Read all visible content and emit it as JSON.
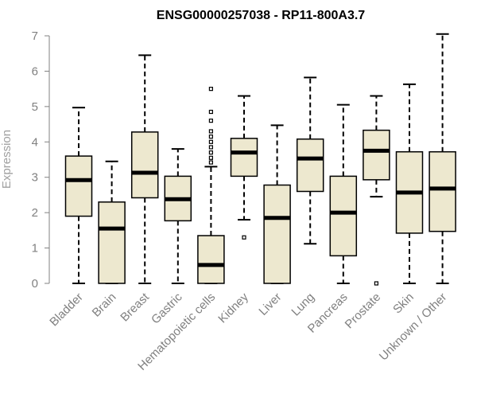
{
  "chart_data": {
    "type": "boxplot",
    "title": "ENSG00000257038 - RP11-800A3.7",
    "ylabel": "Expression",
    "xlabel": "",
    "ylim": [
      0,
      7
    ],
    "yticks": [
      0,
      1,
      2,
      3,
      4,
      5,
      6,
      7
    ],
    "grid": false,
    "colors": {
      "box_fill": "#ede8cf",
      "box_stroke": "#000000",
      "median": "#000000",
      "axis": "#808080",
      "label": "#808080"
    },
    "categories": [
      "Bladder",
      "Brain",
      "Breast",
      "Gastric",
      "Hematopoietic cells",
      "Kidney",
      "Liver",
      "Lung",
      "Pancreas",
      "Prostate",
      "Skin",
      "Unknown / Other"
    ],
    "boxes": [
      {
        "name": "Bladder",
        "min": 0,
        "q1": 1.9,
        "median": 2.92,
        "q3": 3.6,
        "max": 4.97,
        "outliers": []
      },
      {
        "name": "Brain",
        "min": 0,
        "q1": 0,
        "median": 1.55,
        "q3": 2.3,
        "max": 3.45,
        "outliers": []
      },
      {
        "name": "Breast",
        "min": 0,
        "q1": 2.42,
        "median": 3.13,
        "q3": 4.28,
        "max": 6.45,
        "outliers": []
      },
      {
        "name": "Gastric",
        "min": 0,
        "q1": 1.77,
        "median": 2.38,
        "q3": 3.03,
        "max": 3.8,
        "outliers": []
      },
      {
        "name": "Hematopoietic cells",
        "min": 0,
        "q1": 0,
        "median": 0.52,
        "q3": 1.35,
        "max": 3.3,
        "outliers": [
          3.42,
          3.55,
          3.7,
          3.85,
          4.0,
          4.15,
          4.3,
          4.6,
          4.85,
          5.5
        ]
      },
      {
        "name": "Kidney",
        "min": 1.8,
        "q1": 3.03,
        "median": 3.7,
        "q3": 4.1,
        "max": 5.3,
        "outliers": [
          1.3
        ]
      },
      {
        "name": "Liver",
        "min": 0,
        "q1": 0,
        "median": 1.85,
        "q3": 2.78,
        "max": 4.47,
        "outliers": []
      },
      {
        "name": "Lung",
        "min": 1.12,
        "q1": 2.6,
        "median": 3.53,
        "q3": 4.08,
        "max": 5.82,
        "outliers": []
      },
      {
        "name": "Pancreas",
        "min": 0,
        "q1": 0.78,
        "median": 2.0,
        "q3": 3.03,
        "max": 5.05,
        "outliers": []
      },
      {
        "name": "Prostate",
        "min": 2.45,
        "q1": 2.93,
        "median": 3.75,
        "q3": 4.33,
        "max": 5.3,
        "outliers": [
          0
        ]
      },
      {
        "name": "Skin",
        "min": 0,
        "q1": 1.42,
        "median": 2.57,
        "q3": 3.72,
        "max": 5.63,
        "outliers": []
      },
      {
        "name": "Unknown / Other",
        "min": 0,
        "q1": 1.47,
        "median": 2.68,
        "q3": 3.72,
        "max": 7.05,
        "outliers": []
      }
    ]
  }
}
